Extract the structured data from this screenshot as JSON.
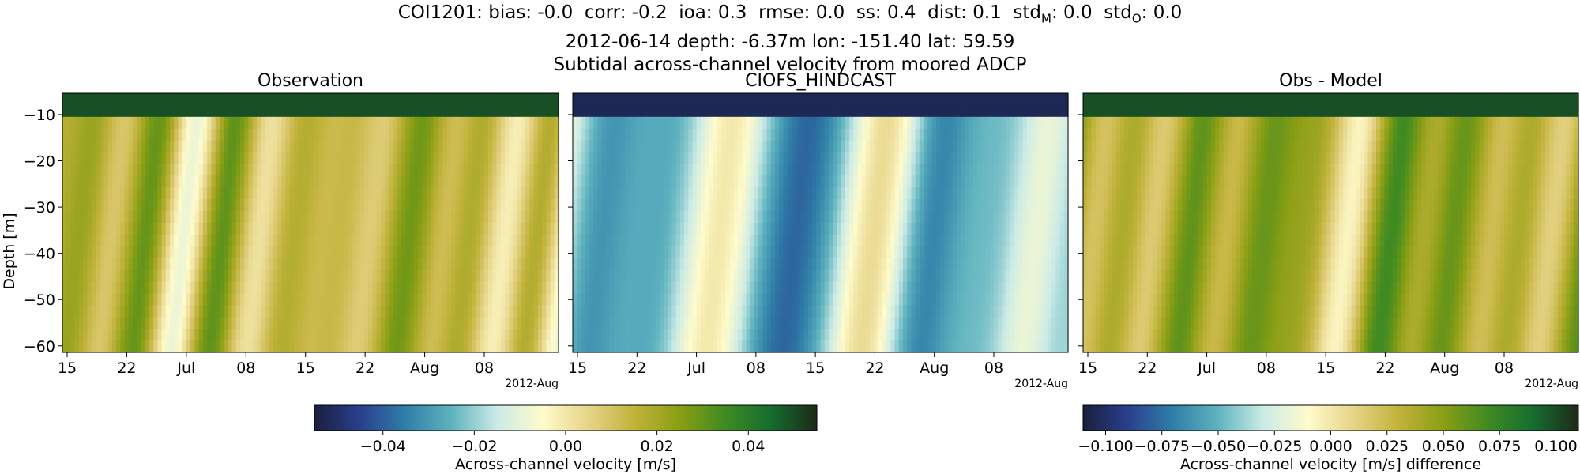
{
  "title": {
    "line1_prefix": "COI1201: bias: -0.0  corr: -0.2  ioa: 0.3  rmse: 0.0  ss: 0.4  dist: 0.1  std",
    "sub_m": "M",
    "line1_mid": ": 0.0  std",
    "sub_o": "O",
    "line1_end": ": 0.0",
    "line2": "2012-06-14 depth: -6.37m lon: -151.40 lat: 59.59",
    "line3": "Subtidal across-channel velocity from moored ADCP"
  },
  "colormap": [
    "#1a1f3d",
    "#2a3f8f",
    "#2f7fa8",
    "#5fb3bf",
    "#ccebe6",
    "#fffbcc",
    "#e6d488",
    "#c2b33c",
    "#8a9e14",
    "#3f8a22",
    "#156d2f",
    "#1e2a18"
  ],
  "chart_data": [
    {
      "type": "heatmap",
      "title": "Observation",
      "ylabel": "Depth [m]",
      "xlabel": "",
      "x_tick_labels": [
        "15",
        "22",
        "Jul",
        "08",
        "15",
        "22",
        "Aug",
        "08"
      ],
      "x_offset_label": "2012-Aug",
      "x_range": [
        "2012-06-14",
        "2012-08-15"
      ],
      "y_ticks": [
        -10,
        -20,
        -30,
        -40,
        -50,
        -60
      ],
      "y_range": [
        -61.4,
        -5.4
      ],
      "clim": [
        -0.055,
        0.055
      ]
    },
    {
      "type": "heatmap",
      "title": "CIOFS_HINDCAST",
      "ylabel": "",
      "x_tick_labels": [
        "15",
        "22",
        "Jul",
        "08",
        "15",
        "22",
        "Aug",
        "08"
      ],
      "x_offset_label": "2012-Aug",
      "x_range": [
        "2012-06-14",
        "2012-08-15"
      ],
      "y_range": [
        -61.4,
        -5.4
      ],
      "clim": [
        -0.055,
        0.055
      ]
    },
    {
      "type": "heatmap",
      "title": "Obs - Model",
      "ylabel": "",
      "x_tick_labels": [
        "15",
        "22",
        "Jul",
        "08",
        "15",
        "22",
        "Aug",
        "08"
      ],
      "x_offset_label": "2012-Aug",
      "x_range": [
        "2012-06-14",
        "2012-08-15"
      ],
      "y_range": [
        -61.4,
        -5.4
      ],
      "clim": [
        -0.11,
        0.11
      ]
    }
  ],
  "colorbars": [
    {
      "label": "Across-channel velocity [m/s]",
      "tick_labels": [
        "−0.04",
        "−0.02",
        "0.00",
        "0.02",
        "0.04"
      ],
      "ticks": [
        -0.04,
        -0.02,
        0.0,
        0.02,
        0.04
      ],
      "range": [
        -0.055,
        0.055
      ]
    },
    {
      "label": "Across-channel velocity [m/s] difference",
      "tick_labels": [
        "−0.100",
        "−0.075",
        "−0.050",
        "−0.025",
        "0.000",
        "0.025",
        "0.050",
        "0.075",
        "0.100"
      ],
      "ticks": [
        -0.1,
        -0.075,
        -0.05,
        -0.025,
        0.0,
        0.025,
        0.05,
        0.075,
        0.1
      ],
      "range": [
        -0.11,
        0.11
      ]
    }
  ]
}
